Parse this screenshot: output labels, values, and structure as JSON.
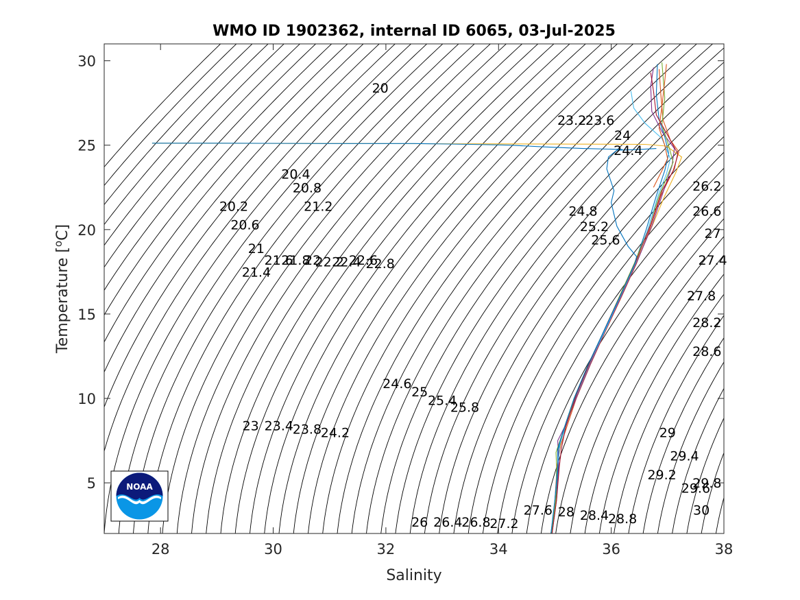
{
  "chart_data": {
    "type": "line",
    "title": "WMO ID 1902362, internal ID 6065, 03-Jul-2025",
    "xlabel": "Salinity",
    "ylabel": "Temperature [°C]",
    "ylabel_parts": {
      "text": "Temperature [",
      "sup": "o",
      "unit": "C]"
    },
    "xlim": [
      27,
      38
    ],
    "ylim": [
      2,
      31
    ],
    "xticks": [
      "28",
      "30",
      "32",
      "34",
      "36",
      "38"
    ],
    "yticks": [
      "5",
      "10",
      "15",
      "20",
      "25",
      "30"
    ],
    "grid": false,
    "legend": "none",
    "density_contour_interval": 0.2,
    "density_contour_range": [
      17.8,
      31.0
    ],
    "contour_labels": [
      {
        "text": "20",
        "s": 31.9,
        "t": 28.4
      },
      {
        "text": "20.4",
        "s": 30.4,
        "t": 23.3
      },
      {
        "text": "20.8",
        "s": 30.6,
        "t": 22.5
      },
      {
        "text": "21.2",
        "s": 30.8,
        "t": 21.4
      },
      {
        "text": "20.2",
        "s": 29.3,
        "t": 21.4
      },
      {
        "text": "20.6",
        "s": 29.5,
        "t": 20.3
      },
      {
        "text": "21",
        "s": 29.7,
        "t": 18.9
      },
      {
        "text": "21.4",
        "s": 29.7,
        "t": 17.5
      },
      {
        "text": "21.6",
        "s": 30.1,
        "t": 18.2
      },
      {
        "text": "21.8",
        "s": 30.4,
        "t": 18.2
      },
      {
        "text": "22",
        "s": 30.7,
        "t": 18.2
      },
      {
        "text": "22.2",
        "s": 31.0,
        "t": 18.1
      },
      {
        "text": "22.4",
        "s": 31.3,
        "t": 18.1
      },
      {
        "text": "22.6",
        "s": 31.6,
        "t": 18.2
      },
      {
        "text": "22.8",
        "s": 31.9,
        "t": 18.0
      },
      {
        "text": "23.2",
        "s": 35.3,
        "t": 26.5
      },
      {
        "text": "23.6",
        "s": 35.8,
        "t": 26.5
      },
      {
        "text": "24",
        "s": 36.2,
        "t": 25.6
      },
      {
        "text": "24.4",
        "s": 36.3,
        "t": 24.7
      },
      {
        "text": "24.8",
        "s": 35.5,
        "t": 21.1
      },
      {
        "text": "25.2",
        "s": 35.7,
        "t": 20.2
      },
      {
        "text": "25.6",
        "s": 35.9,
        "t": 19.4
      },
      {
        "text": "26.2",
        "s": 37.7,
        "t": 22.6
      },
      {
        "text": "26.6",
        "s": 37.7,
        "t": 21.1
      },
      {
        "text": "27",
        "s": 37.8,
        "t": 19.8
      },
      {
        "text": "27.4",
        "s": 37.8,
        "t": 18.2
      },
      {
        "text": "27.8",
        "s": 37.6,
        "t": 16.1
      },
      {
        "text": "28.2",
        "s": 37.7,
        "t": 14.5
      },
      {
        "text": "28.6",
        "s": 37.7,
        "t": 12.8
      },
      {
        "text": "24.6",
        "s": 32.2,
        "t": 10.9
      },
      {
        "text": "25",
        "s": 32.6,
        "t": 10.4
      },
      {
        "text": "25.4",
        "s": 33.0,
        "t": 9.9
      },
      {
        "text": "25.8",
        "s": 33.4,
        "t": 9.5
      },
      {
        "text": "23",
        "s": 29.6,
        "t": 8.4
      },
      {
        "text": "23.4",
        "s": 30.1,
        "t": 8.4
      },
      {
        "text": "23.8",
        "s": 30.6,
        "t": 8.2
      },
      {
        "text": "24.2",
        "s": 31.1,
        "t": 8.0
      },
      {
        "text": "29",
        "s": 37.0,
        "t": 8.0
      },
      {
        "text": "29.4",
        "s": 37.3,
        "t": 6.6
      },
      {
        "text": "29.2",
        "s": 36.9,
        "t": 5.5
      },
      {
        "text": "29.8",
        "s": 37.7,
        "t": 5.0
      },
      {
        "text": "29.6",
        "s": 37.5,
        "t": 4.7
      },
      {
        "text": "30",
        "s": 37.6,
        "t": 3.4
      },
      {
        "text": "26",
        "s": 32.6,
        "t": 2.7
      },
      {
        "text": "26.4",
        "s": 33.1,
        "t": 2.7
      },
      {
        "text": "26.8",
        "s": 33.6,
        "t": 2.7
      },
      {
        "text": "27.2",
        "s": 34.1,
        "t": 2.6
      },
      {
        "text": "27.6",
        "s": 34.7,
        "t": 3.4
      },
      {
        "text": "28",
        "s": 35.2,
        "t": 3.3
      },
      {
        "text": "28.4",
        "s": 35.7,
        "t": 3.1
      },
      {
        "text": "28.8",
        "s": 36.2,
        "t": 2.9
      }
    ],
    "series": [
      {
        "color": "#0072bd",
        "points": [
          [
            34.93,
            2.0
          ],
          [
            35.02,
            4.0
          ],
          [
            35.06,
            6.0
          ],
          [
            35.06,
            7.0
          ],
          [
            35.15,
            8.0
          ],
          [
            35.35,
            10.0
          ],
          [
            35.6,
            12.0
          ],
          [
            35.88,
            14.0
          ],
          [
            36.15,
            16.0
          ],
          [
            36.42,
            18.0
          ],
          [
            36.62,
            20.0
          ],
          [
            36.8,
            22.0
          ],
          [
            36.95,
            23.5
          ],
          [
            37.02,
            24.5
          ],
          [
            36.95,
            25.5
          ],
          [
            36.85,
            26.5
          ],
          [
            36.8,
            28.0
          ],
          [
            36.82,
            29.8
          ]
        ]
      },
      {
        "color": "#d95319",
        "points": [
          [
            34.94,
            2.0
          ],
          [
            35.0,
            4.0
          ],
          [
            35.04,
            6.0
          ],
          [
            35.1,
            7.2
          ],
          [
            35.18,
            8.0
          ],
          [
            35.38,
            10.0
          ],
          [
            35.63,
            12.0
          ],
          [
            35.9,
            14.0
          ],
          [
            36.18,
            16.0
          ],
          [
            36.45,
            18.0
          ],
          [
            36.68,
            20.0
          ],
          [
            36.88,
            22.0
          ],
          [
            37.1,
            23.5
          ],
          [
            37.2,
            24.6
          ],
          [
            37.05,
            25.3
          ],
          [
            36.92,
            26.5
          ],
          [
            36.88,
            28.0
          ],
          [
            36.85,
            29.5
          ]
        ]
      },
      {
        "color": "#edb120",
        "points": [
          [
            34.93,
            2.0
          ],
          [
            35.01,
            4.0
          ],
          [
            35.05,
            6.0
          ],
          [
            35.08,
            7.0
          ],
          [
            35.14,
            8.0
          ],
          [
            35.36,
            10.0
          ],
          [
            35.61,
            12.0
          ],
          [
            35.89,
            14.0
          ],
          [
            36.16,
            16.0
          ],
          [
            36.43,
            18.0
          ],
          [
            36.7,
            20.0
          ],
          [
            36.95,
            22.0
          ],
          [
            37.15,
            23.4
          ],
          [
            37.25,
            24.3
          ],
          [
            36.98,
            24.95
          ],
          [
            36.6,
            25.05
          ],
          [
            34.0,
            25.08
          ],
          [
            31.0,
            25.1
          ],
          [
            28.6,
            25.12
          ],
          [
            27.85,
            25.12
          ]
        ]
      },
      {
        "color": "#7e2f8e",
        "points": [
          [
            34.95,
            2.0
          ],
          [
            35.03,
            4.0
          ],
          [
            35.07,
            6.0
          ],
          [
            35.05,
            7.5
          ],
          [
            35.2,
            8.5
          ],
          [
            35.4,
            10.2
          ],
          [
            35.65,
            12.2
          ],
          [
            35.92,
            14.2
          ],
          [
            36.2,
            16.2
          ],
          [
            36.47,
            18.2
          ],
          [
            36.72,
            20.2
          ],
          [
            36.92,
            22.2
          ],
          [
            37.08,
            23.8
          ],
          [
            37.12,
            24.8
          ],
          [
            36.9,
            25.8
          ],
          [
            36.72,
            27.0
          ],
          [
            36.7,
            28.5
          ],
          [
            36.75,
            29.6
          ]
        ]
      },
      {
        "color": "#77ac30",
        "points": [
          [
            34.94,
            2.0
          ],
          [
            35.02,
            4.0
          ],
          [
            35.03,
            6.0
          ],
          [
            35.02,
            6.8
          ],
          [
            35.16,
            8.2
          ],
          [
            35.34,
            10.0
          ],
          [
            35.59,
            12.0
          ],
          [
            35.87,
            14.0
          ],
          [
            36.14,
            16.0
          ],
          [
            36.41,
            18.0
          ],
          [
            36.65,
            20.0
          ],
          [
            36.85,
            22.0
          ],
          [
            37.0,
            23.2
          ],
          [
            37.1,
            24.0
          ],
          [
            37.0,
            25.2
          ],
          [
            36.9,
            26.2
          ],
          [
            36.95,
            27.8
          ],
          [
            36.9,
            29.9
          ]
        ]
      },
      {
        "color": "#4dbeee",
        "points": [
          [
            34.93,
            2.0
          ],
          [
            35.0,
            4.0
          ],
          [
            35.05,
            6.0
          ],
          [
            35.09,
            7.3
          ],
          [
            35.17,
            8.1
          ],
          [
            35.37,
            10.1
          ],
          [
            35.62,
            12.1
          ],
          [
            35.9,
            14.1
          ],
          [
            36.17,
            16.1
          ],
          [
            36.44,
            18.1
          ],
          [
            36.66,
            20.1
          ],
          [
            36.83,
            22.0
          ],
          [
            36.98,
            23.3
          ],
          [
            37.05,
            24.2
          ],
          [
            36.9,
            25.4
          ],
          [
            36.6,
            26.3
          ],
          [
            36.4,
            27.2
          ],
          [
            36.35,
            28.2
          ]
        ]
      },
      {
        "color": "#a2142f",
        "points": [
          [
            34.95,
            2.0
          ],
          [
            35.03,
            4.0
          ],
          [
            35.08,
            6.0
          ],
          [
            35.12,
            7.1
          ],
          [
            35.19,
            8.3
          ],
          [
            35.39,
            10.3
          ],
          [
            35.64,
            12.3
          ],
          [
            35.91,
            14.3
          ],
          [
            36.19,
            16.3
          ],
          [
            36.46,
            18.3
          ],
          [
            36.7,
            20.3
          ],
          [
            36.9,
            22.3
          ],
          [
            37.12,
            23.6
          ],
          [
            37.18,
            24.5
          ],
          [
            37.0,
            25.6
          ],
          [
            36.8,
            26.8
          ],
          [
            36.75,
            28.2
          ],
          [
            36.7,
            29.3
          ]
        ]
      },
      {
        "color": "#0072bd",
        "points": [
          [
            34.93,
            2.0
          ],
          [
            35.0,
            4.0
          ],
          [
            35.05,
            6.0
          ],
          [
            35.05,
            7.0
          ],
          [
            35.14,
            8.0
          ],
          [
            35.34,
            10.0
          ],
          [
            35.59,
            12.0
          ],
          [
            35.87,
            14.0
          ],
          [
            36.15,
            16.0
          ],
          [
            36.42,
            18.0
          ],
          [
            36.45,
            18.4
          ],
          [
            36.3,
            19.0
          ],
          [
            36.2,
            19.6
          ],
          [
            36.1,
            20.2
          ],
          [
            36.05,
            20.9
          ],
          [
            36.0,
            21.6
          ],
          [
            36.05,
            22.3
          ],
          [
            35.98,
            23.0
          ],
          [
            35.92,
            23.6
          ],
          [
            35.95,
            24.3
          ],
          [
            36.1,
            24.7
          ],
          [
            36.5,
            24.75
          ],
          [
            36.8,
            24.8
          ]
        ]
      },
      {
        "color": "#0072bd",
        "points": [
          [
            36.2,
            24.75
          ],
          [
            35.5,
            24.8
          ],
          [
            34.8,
            24.9
          ],
          [
            34.2,
            25.0
          ],
          [
            33.5,
            25.05
          ],
          [
            32.5,
            25.1
          ],
          [
            31.0,
            25.1
          ],
          [
            29.0,
            25.12
          ],
          [
            27.85,
            25.12
          ]
        ]
      },
      {
        "color": "#d95319",
        "points": [
          [
            36.75,
            22.5
          ],
          [
            36.9,
            23.5
          ],
          [
            37.0,
            24.2
          ],
          [
            36.95,
            25.0
          ],
          [
            36.85,
            26.0
          ],
          [
            36.9,
            27.3
          ],
          [
            36.95,
            28.8
          ],
          [
            36.98,
            29.8
          ]
        ]
      }
    ],
    "logo": {
      "name": "noaa-logo",
      "text": "NOAA"
    }
  }
}
